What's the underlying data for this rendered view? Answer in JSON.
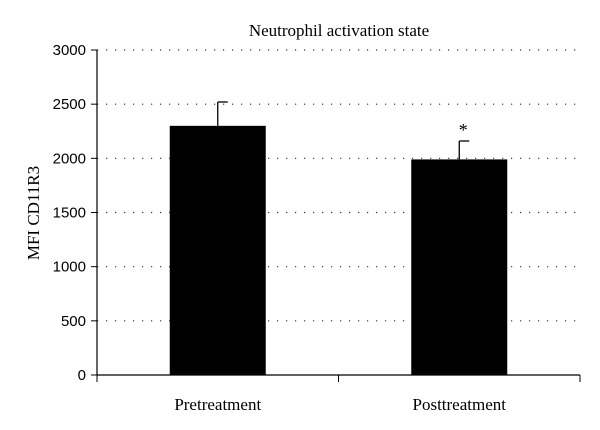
{
  "chart_data": {
    "type": "bar",
    "title": "Neutrophil activation state",
    "xlabel": "",
    "ylabel": "MFI CD11R3",
    "categories": [
      "Pretreatment",
      "Posttreatment"
    ],
    "values": [
      2300,
      1990
    ],
    "error_upper": [
      2520,
      2160
    ],
    "annotations": [
      "",
      "*"
    ],
    "ylim": [
      0,
      3000
    ],
    "yticks": [
      0,
      500,
      1000,
      1500,
      2000,
      2500,
      3000
    ],
    "ytick_labels": [
      "0",
      "500",
      "1000",
      "1500",
      "2000",
      "2500",
      "3000"
    ],
    "grid": "dotted horizontal",
    "bar_color": "#000000"
  }
}
